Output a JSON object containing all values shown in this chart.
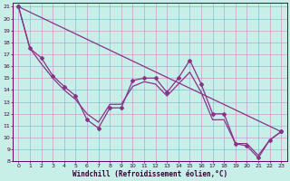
{
  "xlabel": "Windchill (Refroidissement éolien,°C)",
  "background_color": "#c8eee8",
  "grid_color": "#cc88cc",
  "line_color": "#883388",
  "series1_x": [
    0,
    1,
    2,
    3,
    4,
    5,
    6,
    7,
    8,
    9,
    10,
    11,
    12,
    13,
    14,
    15,
    16,
    17,
    18,
    19,
    20,
    21,
    22,
    23
  ],
  "series1_y": [
    21,
    17.5,
    16.7,
    15.2,
    14.3,
    13.5,
    11.5,
    10.8,
    12.5,
    12.5,
    14.8,
    15.0,
    15.0,
    13.8,
    15.0,
    16.5,
    14.5,
    12.0,
    12.0,
    9.5,
    9.3,
    8.3,
    9.8,
    10.5
  ],
  "series2_x": [
    0,
    23
  ],
  "series2_y": [
    21.0,
    10.5
  ],
  "series3_x": [
    0,
    1,
    2,
    3,
    4,
    5,
    6,
    7,
    8,
    9,
    10,
    11,
    12,
    13,
    14,
    15,
    16,
    17,
    18,
    19,
    20,
    21,
    22,
    23
  ],
  "series3_y": [
    21,
    17.5,
    16.2,
    15.0,
    14.0,
    13.2,
    12.0,
    11.3,
    12.8,
    12.8,
    14.3,
    14.7,
    14.5,
    13.5,
    14.5,
    15.5,
    13.8,
    11.5,
    11.5,
    9.5,
    9.5,
    8.5,
    9.8,
    10.5
  ],
  "ylim": [
    8,
    21
  ],
  "xlim": [
    -0.5,
    23.5
  ],
  "yticks": [
    8,
    9,
    10,
    11,
    12,
    13,
    14,
    15,
    16,
    17,
    18,
    19,
    20,
    21
  ],
  "xticks": [
    0,
    1,
    2,
    3,
    4,
    5,
    6,
    7,
    8,
    9,
    10,
    11,
    12,
    13,
    14,
    15,
    16,
    17,
    18,
    19,
    20,
    21,
    22,
    23
  ],
  "tick_fontsize": 4.5,
  "xlabel_fontsize": 5.5,
  "marker": "D",
  "markersize": 2.0,
  "linewidth": 0.9
}
